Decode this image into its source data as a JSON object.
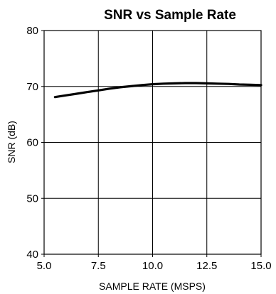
{
  "chart_data": {
    "type": "line",
    "title": "SNR vs Sample Rate",
    "xlabel": "SAMPLE RATE (MSPS)",
    "ylabel": "SNR (dB)",
    "xlim": [
      5.0,
      15.0
    ],
    "ylim": [
      40,
      80
    ],
    "xticks": [
      "5.0",
      "7.5",
      "10.0",
      "12.5",
      "15.0"
    ],
    "yticks": [
      "40",
      "50",
      "60",
      "70",
      "80"
    ],
    "grid": true,
    "series": [
      {
        "x": [
          5.5,
          6.0,
          6.5,
          7.0,
          7.5,
          8.0,
          8.5,
          9.0,
          9.5,
          10.0,
          10.5,
          11.0,
          11.5,
          12.0,
          12.5,
          13.0,
          13.5,
          14.0,
          14.5,
          15.0
        ],
        "y": [
          68.1,
          68.4,
          68.7,
          69.0,
          69.3,
          69.6,
          69.85,
          70.05,
          70.25,
          70.4,
          70.5,
          70.55,
          70.6,
          70.6,
          70.55,
          70.5,
          70.45,
          70.35,
          70.3,
          70.25
        ],
        "color": "#000000"
      }
    ]
  }
}
